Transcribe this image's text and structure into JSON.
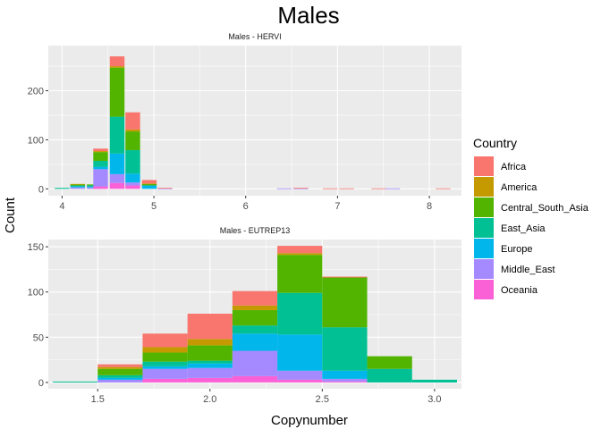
{
  "chart_data": {
    "type": "bar",
    "title": "Males",
    "xlabel": "Copynumber",
    "ylabel": "Count",
    "legend": {
      "title": "Country",
      "position": "right",
      "entries": [
        "Africa",
        "America",
        "Central_South_Asia",
        "East_Asia",
        "Europe",
        "Middle_East",
        "Oceania"
      ]
    },
    "colors": {
      "Africa": "#F8766D",
      "America": "#C49A00",
      "Central_South_Asia": "#53B400",
      "East_Asia": "#00C094",
      "Europe": "#00B6EB",
      "Middle_East": "#A58AFF",
      "Oceania": "#FB61D7"
    },
    "grid": true,
    "panels": [
      {
        "title": "Males - HERVI",
        "xlim": [
          3.85,
          8.35
        ],
        "ylim": [
          -14,
          292
        ],
        "xticks": [
          "4",
          "5",
          "6",
          "7",
          "8"
        ],
        "xtick_values": [
          4,
          5,
          6,
          7,
          8
        ],
        "yticks": [
          "0",
          "100",
          "200"
        ],
        "ytick_values": [
          0,
          100,
          200
        ],
        "bin_width": 0.16,
        "bins": [
          {
            "x": 4.0,
            "Africa": 0,
            "America": 0,
            "Central_South_Asia": 0,
            "East_Asia": 2,
            "Europe": 0,
            "Middle_East": 0,
            "Oceania": 0
          },
          {
            "x": 4.17,
            "Africa": 0,
            "America": 1,
            "Central_South_Asia": 2,
            "East_Asia": 2,
            "Europe": 2,
            "Middle_East": 3,
            "Oceania": 0
          },
          {
            "x": 4.35,
            "Africa": 0,
            "America": 0,
            "Central_South_Asia": 2,
            "East_Asia": 2,
            "Europe": 2,
            "Middle_East": 3,
            "Oceania": 0
          },
          {
            "x": 4.42,
            "Africa": 5,
            "America": 2,
            "Central_South_Asia": 18,
            "East_Asia": 12,
            "Europe": 5,
            "Middle_East": 35,
            "Oceania": 5
          },
          {
            "x": 4.6,
            "Africa": 20,
            "America": 3,
            "Central_South_Asia": 100,
            "East_Asia": 75,
            "Europe": 42,
            "Middle_East": 18,
            "Oceania": 12
          },
          {
            "x": 4.77,
            "Africa": 35,
            "America": 4,
            "Central_South_Asia": 38,
            "East_Asia": 48,
            "Europe": 18,
            "Middle_East": 6,
            "Oceania": 7
          },
          {
            "x": 4.95,
            "Africa": 7,
            "America": 1,
            "Central_South_Asia": 3,
            "East_Asia": 0,
            "Europe": 7,
            "Middle_East": 0,
            "Oceania": 0
          },
          {
            "x": 5.12,
            "Africa": 1,
            "America": 0,
            "Central_South_Asia": 0,
            "East_Asia": 0,
            "Europe": 0,
            "Middle_East": 1,
            "Oceania": 0
          },
          {
            "x": 6.42,
            "Africa": 0,
            "America": 0,
            "Central_South_Asia": 0,
            "East_Asia": 0,
            "Europe": 0,
            "Middle_East": 1,
            "Oceania": 0
          },
          {
            "x": 6.6,
            "Africa": 1,
            "America": 0,
            "Central_South_Asia": 0,
            "East_Asia": 0,
            "Europe": 0,
            "Middle_East": 1,
            "Oceania": 0
          },
          {
            "x": 6.92,
            "Africa": 1,
            "America": 0,
            "Central_South_Asia": 0,
            "East_Asia": 0,
            "Europe": 0,
            "Middle_East": 0,
            "Oceania": 0
          },
          {
            "x": 7.1,
            "Africa": 1,
            "America": 0,
            "Central_South_Asia": 0,
            "East_Asia": 0,
            "Europe": 0,
            "Middle_East": 0,
            "Oceania": 0
          },
          {
            "x": 7.45,
            "Africa": 1,
            "America": 0,
            "Central_South_Asia": 0,
            "East_Asia": 0,
            "Europe": 0,
            "Middle_East": 0,
            "Oceania": 0
          },
          {
            "x": 7.6,
            "Africa": 0,
            "America": 0,
            "Central_South_Asia": 0,
            "East_Asia": 0,
            "Europe": 0,
            "Middle_East": 1,
            "Oceania": 0
          },
          {
            "x": 8.15,
            "Africa": 1,
            "America": 0,
            "Central_South_Asia": 0,
            "East_Asia": 0,
            "Europe": 0,
            "Middle_East": 0,
            "Oceania": 0
          }
        ]
      },
      {
        "title": "Males - EUTREP13",
        "xlim": [
          1.28,
          3.12
        ],
        "ylim": [
          -7,
          158
        ],
        "xticks": [
          "1.5",
          "2.0",
          "2.5",
          "3.0"
        ],
        "xtick_values": [
          1.5,
          2.0,
          2.5,
          3.0
        ],
        "yticks": [
          "0",
          "50",
          "100",
          "150"
        ],
        "ytick_values": [
          0,
          50,
          100,
          150
        ],
        "bin_width": 0.2,
        "bins": [
          {
            "x": 1.4,
            "Africa": 0,
            "America": 0,
            "Central_South_Asia": 0,
            "East_Asia": 1,
            "Europe": 0,
            "Middle_East": 0,
            "Oceania": 0
          },
          {
            "x": 1.6,
            "Africa": 3,
            "America": 2,
            "Central_South_Asia": 7,
            "East_Asia": 3,
            "Europe": 2,
            "Middle_East": 3,
            "Oceania": 0
          },
          {
            "x": 1.8,
            "Africa": 15,
            "America": 6,
            "Central_South_Asia": 10,
            "East_Asia": 5,
            "Europe": 3,
            "Middle_East": 11,
            "Oceania": 4
          },
          {
            "x": 2.0,
            "Africa": 28,
            "America": 7,
            "Central_South_Asia": 17,
            "East_Asia": 3,
            "Europe": 5,
            "Middle_East": 11,
            "Oceania": 5
          },
          {
            "x": 2.2,
            "Africa": 16,
            "America": 5,
            "Central_South_Asia": 17,
            "East_Asia": 9,
            "Europe": 19,
            "Middle_East": 28,
            "Oceania": 7
          },
          {
            "x": 2.4,
            "Africa": 8,
            "America": 2,
            "Central_South_Asia": 42,
            "East_Asia": 46,
            "Europe": 40,
            "Middle_East": 10,
            "Oceania": 3
          },
          {
            "x": 2.6,
            "Africa": 1,
            "America": 0,
            "Central_South_Asia": 55,
            "East_Asia": 48,
            "Europe": 9,
            "Middle_East": 3,
            "Oceania": 1
          },
          {
            "x": 2.8,
            "Africa": 0,
            "America": 0,
            "Central_South_Asia": 14,
            "East_Asia": 15,
            "Europe": 0,
            "Middle_East": 0,
            "Oceania": 0
          },
          {
            "x": 3.0,
            "Africa": 0,
            "America": 0,
            "Central_South_Asia": 0,
            "East_Asia": 3,
            "Europe": 0,
            "Middle_East": 0,
            "Oceania": 0
          }
        ]
      }
    ]
  }
}
